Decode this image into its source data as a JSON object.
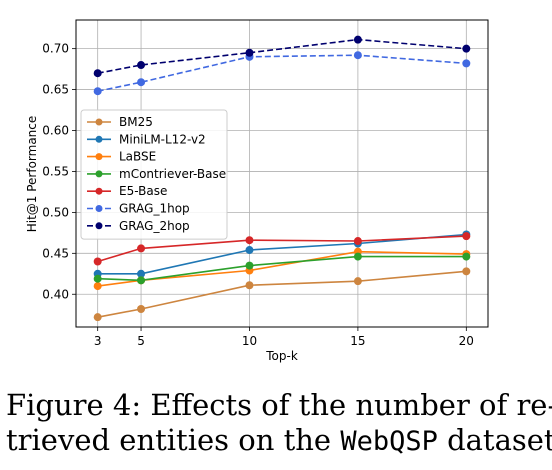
{
  "chart_data": {
    "type": "line",
    "title": "",
    "xlabel": "Top-k",
    "ylabel": "Hit@1 Performance",
    "x": [
      3,
      5,
      10,
      15,
      20
    ],
    "xticks": [
      "3",
      "5",
      "10",
      "15",
      "20"
    ],
    "xlim": [
      2,
      21
    ],
    "ylim": [
      0.36,
      0.735
    ],
    "yticks": [
      "0.40",
      "0.45",
      "0.50",
      "0.55",
      "0.60",
      "0.65",
      "0.70"
    ],
    "grid": true,
    "legend_position": "center-left",
    "series": [
      {
        "name": "BM25",
        "color": "#cd853f",
        "dashed": false,
        "values": [
          0.372,
          0.382,
          0.411,
          0.416,
          0.428
        ]
      },
      {
        "name": "MiniLM-L12-v2",
        "color": "#1f77b4",
        "dashed": false,
        "values": [
          0.425,
          0.425,
          0.454,
          0.462,
          0.473
        ]
      },
      {
        "name": "LaBSE",
        "color": "#ff7f0e",
        "dashed": false,
        "values": [
          0.41,
          0.417,
          0.429,
          0.452,
          0.449
        ]
      },
      {
        "name": "mContriever-Base",
        "color": "#2ca02c",
        "dashed": false,
        "values": [
          0.419,
          0.417,
          0.435,
          0.446,
          0.446
        ]
      },
      {
        "name": "E5-Base",
        "color": "#d62728",
        "dashed": false,
        "values": [
          0.44,
          0.456,
          0.466,
          0.465,
          0.471
        ]
      },
      {
        "name": "GRAG_1hop",
        "color": "#4169e1",
        "dashed": true,
        "values": [
          0.648,
          0.659,
          0.69,
          0.692,
          0.682
        ]
      },
      {
        "name": "GRAG_2hop",
        "color": "#00006e",
        "dashed": true,
        "values": [
          0.67,
          0.68,
          0.695,
          0.711,
          0.7
        ]
      }
    ]
  },
  "caption": {
    "line1": "Figure 4:  Effects of the number of re-",
    "line2_pre": "trieved entities on the ",
    "line2_mono": "WebQSP",
    "line2_post": " dataset."
  }
}
